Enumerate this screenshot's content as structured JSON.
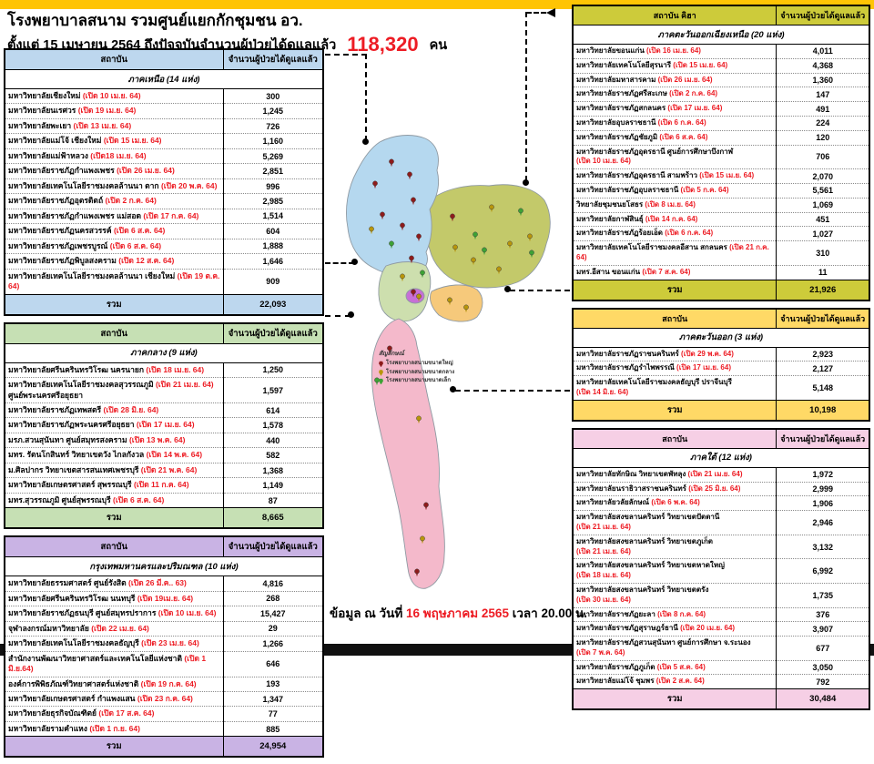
{
  "page": {
    "title": "โรงพยาบาลสนาม รวมศูนย์แยกกักชุมชน อว.",
    "subtitle_prefix": "ตั้งแต่  15 เมษายน 2564 ถึงปัจจุบันจำนวนผู้ป่วยได้ดูแลแล้ว",
    "total_count": "118,320",
    "total_unit": "คน",
    "footer_prefix": "ข้อมูล ณ วันที่",
    "footer_date": "16 พฤษภาคม 2565",
    "footer_suffix": "เวลา 20.00 น."
  },
  "labels": {
    "institution": "สถาบัน",
    "count": "จำนวนผู้ป่วยได้ดูแลแล้ว",
    "total": "รวม"
  },
  "legend": {
    "title": "สัญลักษณ์",
    "items": [
      {
        "label": "โรงพยาบาลสนามขนาดใหญ่",
        "color": "#8E1B1B"
      },
      {
        "label": "โรงพยาบาลสนามขนาดกลาง",
        "color": "#B8960B"
      },
      {
        "label": "โรงพยาบาลสนามขนาดเล็ก",
        "color": "#3DA235"
      }
    ]
  },
  "tables": [
    {
      "id": "north",
      "institution_header": "สถาบัน",
      "count_header": "จำนวนผู้ป่วยได้ดูแลแล้ว",
      "region_label": "ภาคเหนือ (14 แห่ง)",
      "color": "#BDD7EE",
      "map_color": "#B5D8EF",
      "total": "22,093",
      "rows": [
        {
          "name": "มหาวิทยาลัยเชียงใหม่",
          "date": "(เปิด 10 เม.ย. 64)",
          "value": "300"
        },
        {
          "name": "มหาวิทยาลัยนเรศวร",
          "date": "(เปิด 19 เม.ย. 64)",
          "value": "1,245"
        },
        {
          "name": "มหาวิทยาลัยพะเยา",
          "date": "(เปิด 13 เม.ย. 64)",
          "value": "726"
        },
        {
          "name": "มหาวิทยาลัยแม่โจ้ เชียงใหม่",
          "date": "(เปิด 15 เม.ย. 64)",
          "value": "1,160"
        },
        {
          "name": "มหาวิทยาลัยแม่ฟ้าหลวง",
          "date": "(เปิด18 เม.ย. 64)",
          "value": "5,269"
        },
        {
          "name": "มหาวิทยาลัยราชภัฏกำแพงเพชร",
          "date": "(เปิด 26 เม.ย. 64)",
          "value": "2,851"
        },
        {
          "name": "มหาวิทยาลัยเทคโนโลยีราชมงคลล้านนา ตาก",
          "date": "(เปิด 20 พ.ค. 64)",
          "value": "996"
        },
        {
          "name": "มหาวิทยาลัยราชภัฏอุตรดิตถ์",
          "date": "(เปิด 2 ก.ค. 64)",
          "value": "2,985"
        },
        {
          "name": "มหาวิทยาลัยราชภัฏกำแพงเพชร แม่สอด",
          "date": "(เปิด 17 ก.ค. 64)",
          "value": "1,514"
        },
        {
          "name": "มหาวิทยาลัยราชภัฏนครสวรรค์",
          "date": "(เปิด 6 ส.ค. 64)",
          "value": "604"
        },
        {
          "name": "มหาวิทยาลัยราชภัฏเพชรบูรณ์",
          "date": "(เปิด 6 ส.ค. 64)",
          "value": "1,888"
        },
        {
          "name": "มหาวิทยาลัยราชภัฏพิบูลสงคราม",
          "date": "(เปิด 12 ส.ค. 64)",
          "value": "1,646"
        },
        {
          "name": "มหาวิทยาลัยเทคโนโลยีราชมงคลล้านนา เชียงใหม่",
          "date": "(เปิด 19 ต.ค. 64)",
          "value": "909"
        }
      ]
    },
    {
      "id": "central",
      "institution_header": "สถาบัน",
      "count_header": "จำนวนผู้ป่วยได้ดูแลแล้ว",
      "region_label": "ภาคกลาง (9 แห่ง)",
      "color": "#C6E0B4",
      "map_color": "#CDDFAE",
      "total": "8,665",
      "rows": [
        {
          "name": "มหาวิทยาลัยศรีนครินทรวิโรฒ นครนายก",
          "date": "(เปิด 18 เม.ย. 64)",
          "value": "1,250"
        },
        {
          "name": "มหาวิทยาลัยเทคโนโลยีราชมงคลสุวรรณภูมิ",
          "date": "(เปิด 21 เม.ย. 64)",
          "name2": "ศูนย์พระนครศรีอยุธยา",
          "value": "1,597"
        },
        {
          "name": "มหาวิทยาลัยราชภัฏเทพสตรี",
          "date": "(เปิด 28 มิ.ย. 64)",
          "value": "614"
        },
        {
          "name": "มหาวิทยาลัยราชภัฏพระนครศรีอยุธยา",
          "date": "(เปิด 17 เม.ย. 64)",
          "value": "1,578"
        },
        {
          "name": "มรภ.สวนสุนันทา ศูนย์สมุทรสงคราม",
          "date": "(เปิด 13 พ.ค. 64)",
          "value": "440"
        },
        {
          "name": "มทร. รัตนโกสินทร์  วิทยาเขตวัง ไกลกังวล",
          "date": "(เปิด 14 พ.ค. 64)",
          "value": "582"
        },
        {
          "name": "ม.ศิลปากร วิทยาเขตสารสนเทศเพชรบุรี",
          "date": "(เปิด 21 พ.ค. 64)",
          "value": "1,368"
        },
        {
          "name": "มหาวิทยาลัยเกษตรศาสตร์  สุพรรณบุรี",
          "date": "(เปิด 11 ก.ค. 64)",
          "value": "1,149"
        },
        {
          "name": "มทร.สุวรรณภูมิ ศูนย์สุพรรณบุรี",
          "date": "(เปิด 6 ส.ค. 64)",
          "value": "87"
        }
      ]
    },
    {
      "id": "bangkok",
      "institution_header": "สถาบัน",
      "count_header": "จำนวนผู้ป่วยได้ดูแลแล้ว",
      "region_label": "กรุงเทพมหานครและปริมณฑล (10 แห่ง)",
      "color": "#C9B3E4",
      "map_color": "#C76FD6",
      "total": "24,954",
      "rows": [
        {
          "name": "มหาวิทยาลัยธรรมศาสตร์ ศูนย์รังสิต",
          "date": "(เปิด 26 มี.ค.. 63)",
          "value": "4,816"
        },
        {
          "name": "มหาวิทยาลัยศรีนครินทรวิโรฒ นนทบุรี",
          "date": "(เปิด 19เม.ย. 64)",
          "value": "268"
        },
        {
          "name": "มหาวิทยาลัยราชภัฏธนบุรี ศูนย์สมุทรปราการ",
          "date": "(เปิด 10 เม.ย. 64)",
          "value": "15,427"
        },
        {
          "name": "จุฬาลงกรณ์มหาวิทยาลัย",
          "date": "(เปิด 22 เม.ย. 64)",
          "value": "29"
        },
        {
          "name": "มหาวิทยาลัยเทคโนโลยีราชมงคลธัญบุรี",
          "date": "(เปิด 23 เม.ย. 64)",
          "value": "1,266"
        },
        {
          "name": "สำนักงานพัฒนาวิทยาศาสตร์และเทคโนโลยีแห่งชาติ",
          "date": "(เปิด 1 มิ.ย.64)",
          "value": "646"
        },
        {
          "name": "องค์การพิพิธภัณฑ์วิทยาศาสตร์แห่งชาติ",
          "date": "(เปิด 19 ก.ค. 64)",
          "value": "193"
        },
        {
          "name": "มหาวิทยาลัยเกษตรศาสตร์  กำแพงแสน",
          "date": "(เปิด 23 ก.ค. 64)",
          "value": "1,347"
        },
        {
          "name": "มหาวิทยาลัยธุรกิจบัณฑิตย์",
          "date": "(เปิด 17 ส.ค. 64)",
          "value": "77"
        },
        {
          "name": "มหาวิทยาลัยรามคำแหง",
          "date": "(เปิด 1 ก.ย. 64)",
          "value": "885"
        }
      ]
    },
    {
      "id": "northeast",
      "institution_header": "สถาบัน คิฮา",
      "count_header": "จำนวนผู้ป่วยได้ดูแลแล้ว",
      "region_label": "ภาคตะวันออกเฉียงเหนือ  (20 แห่ง)",
      "color": "#CDCB3A",
      "map_color": "#C3C96A",
      "total": "21,926",
      "rows": [
        {
          "name": "มหาวิทยาลัยขอนแก่น",
          "date": "(เปิด 16 เม.ย. 64)",
          "value": "4,011"
        },
        {
          "name": "มหาวิทยาลัยเทคโนโลยีสุรนารี",
          "date": "(เปิด 15 เม.ย. 64)",
          "value": "4,368"
        },
        {
          "name": "มหาวิทยาลัยมหาสารคาม",
          "date": "(เปิด 26 เม.ย. 64)",
          "value": "1,360"
        },
        {
          "name": "มหาวิทยาลัยราชภัฏศรีสะเกษ",
          "date": "(เปิด 2 ก.ค. 64)",
          "value": "147"
        },
        {
          "name": "มหาวิทยาลัยราชภัฏสกลนคร",
          "date": "(เปิด 17 เม.ย. 64)",
          "value": "491"
        },
        {
          "name": "มหาวิทยาลัยอุบลราชธานี",
          "date": "(เปิด 6 ก.ค. 64)",
          "value": "224"
        },
        {
          "name": "มหาวิทยาลัยราชภัฏชัยภูมิ",
          "date": "(เปิด 6 ส.ค. 64)",
          "value": "120"
        },
        {
          "name": "มหาวิทยาลัยราชภัฏอุดรธานี ศูนย์การศึกษาบึงกาฬ",
          "date": "(เปิด 10 เม.ย. 64)",
          "date_newline": true,
          "value": "706"
        },
        {
          "name": "มหาวิทยาลัยราชภัฏอุดรธานี สามพร้าว",
          "date": "(เปิด 15 เม.ย. 64)",
          "value": "2,070"
        },
        {
          "name": "มหาวิทยาลัยราชภัฏอุบลราชธานี",
          "date": "(เปิด 5 ก.ค. 64)",
          "value": "5,561"
        },
        {
          "name": "วิทยาลัยชุมชนยโสธร",
          "date": "(เปิด 8 เม.ย. 64)",
          "value": "1,069"
        },
        {
          "name": "มหาวิทยาลัยกาฬสินธุ์",
          "date": "(เปิด 14 ก.ค. 64)",
          "value": "451"
        },
        {
          "name": "มหาวิทยาลัยราชภัฏร้อยเอ็ด",
          "date": "(เปิด 6 ก.ค. 64)",
          "value": "1,027"
        },
        {
          "name": "มหาวิทยาลัยเทคโนโลยีราชมงคลอีสาน สกลนคร",
          "date": "(เปิด 21 ก.ค. 64)",
          "value": "310"
        },
        {
          "name": "มทร.อีสาน ขอนแก่น",
          "date": "(เปิด 7 ส.ค. 64)",
          "value": "11"
        }
      ]
    },
    {
      "id": "east",
      "institution_header": "สถาบัน",
      "count_header": "จำนวนผู้ป่วยได้ดูแลแล้ว",
      "region_label": "ภาคตะวันออก (3 แห่ง)",
      "color": "#FFD966",
      "map_color": "#F6C97B",
      "total": "10,198",
      "rows": [
        {
          "name": "มหาวิทยาลัยราชภัฏราชนครินทร์",
          "date": "(เปิด 29 พ.ค. 64)",
          "value": "2,923"
        },
        {
          "name": "มหาวิทยาลัยราชภัฏรำไพพรรณี",
          "date": "(เปิด 17 เม.ย. 64)",
          "value": "2,127"
        },
        {
          "name": "มหาวิทยาลัยเทคโนโลยีราชมงคลธัญบุรี ปราจีนบุรี",
          "date": "(เปิด 14 มิ.ย. 64)",
          "date_newline": true,
          "value": "5,148"
        }
      ]
    },
    {
      "id": "south",
      "institution_header": "สถาบัน",
      "count_header": "จำนวนผู้ป่วยได้ดูแลแล้ว",
      "region_label": "ภาคใต้  (12 แห่ง)",
      "color": "#F6CFE5",
      "map_color": "#F4B9CB",
      "total": "30,484",
      "rows": [
        {
          "name": "มหาวิทยาลัยทักษิณ  วิทยาเขตพัทลุง",
          "date": "(เปิด 21 เม.ย. 64)",
          "value": "1,972"
        },
        {
          "name": "มหาวิทยาลัยนราธิวาสราชนครินทร์",
          "date": "(เปิด 25 มิ.ย. 64)",
          "value": "2,999"
        },
        {
          "name": "มหาวิทยาลัยวลัยลักษณ์",
          "date": "(เปิด 6 พ.ค. 64)",
          "value": "1,906"
        },
        {
          "name": "มหาวิทยาลัยสงขลานครินทร์  วิทยาเขตปัตตานี",
          "date": "(เปิด 21 เม.ย. 64)",
          "date_newline": true,
          "value": "2,946"
        },
        {
          "name": "มหาวิทยาลัยสงขลานครินทร์  วิทยาเขตภูเก็ต",
          "date": "(เปิด 21 เม.ย. 64)",
          "date_newline": true,
          "value": "3,132"
        },
        {
          "name": "มหาวิทยาลัยสงขลานครินทร์  วิทยาเขตหาดใหญ่",
          "date": "(เปิด 18 เม.ย. 64)",
          "date_newline": true,
          "value": "6,992"
        },
        {
          "name": "มหาวิทยาลัยสงขลานครินทร์  วิทยาเขตตรัง",
          "date": "(เปิด  30 เม.ย. 64)",
          "date_newline": true,
          "value": "1,735"
        },
        {
          "name": "มหาวิทยาลัยราชภัฏยะลา",
          "date": "(เปิด  8 ก.ค. 64)",
          "value": "376"
        },
        {
          "name": "มหาวิทยาลัยราชภัฏสุราษฎร์ธานี",
          "date": "(เปิด 20 เม.ย. 64)",
          "value": "3,907"
        },
        {
          "name": "มหาวิทยาลัยราชภัฏสวนสุนันทา  ศูนย์การศึกษา  จ.ระนอง",
          "date": "(เปิด 7 พ.ค. 64)",
          "date_newline": true,
          "value": "677"
        },
        {
          "name": "มหาวิทยาลัยราชภัฏภูเก็ต",
          "date": "(เปิด 5 ส.ค. 64)",
          "value": "3,050"
        },
        {
          "name": "มหาวิทยาลัยแม่โจ้  ชุมพร",
          "date": "(เปิด 2 ส.ค. 64)",
          "value": "792"
        }
      ]
    }
  ]
}
